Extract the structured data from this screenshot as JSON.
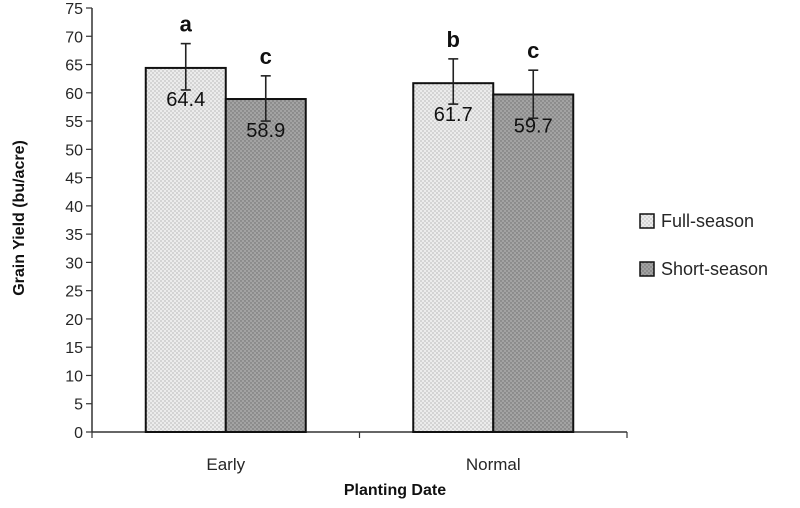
{
  "chart_data": {
    "type": "bar",
    "xlabel": "Planting Date",
    "ylabel": "Grain Yield (bu/acre)",
    "categories": [
      "Early",
      "Normal"
    ],
    "ylim": [
      0,
      75
    ],
    "yticks": [
      0,
      5,
      10,
      15,
      20,
      25,
      30,
      35,
      40,
      45,
      50,
      55,
      60,
      65,
      70,
      75
    ],
    "grid": false,
    "legend_position": "right",
    "series": [
      {
        "name": "Full-season",
        "values": [
          64.4,
          61.7
        ],
        "value_labels": [
          "64.4",
          "61.7"
        ],
        "error_low": [
          60.5,
          58.0
        ],
        "error_high": [
          68.7,
          66.0
        ],
        "significance": [
          "a",
          "b"
        ],
        "fill": "#e6e6e6",
        "pattern": "light-dotted"
      },
      {
        "name": "Short-season",
        "values": [
          58.9,
          59.7
        ],
        "value_labels": [
          "58.9",
          "59.7"
        ],
        "error_low": [
          55.0,
          55.5
        ],
        "error_high": [
          63.0,
          64.0
        ],
        "significance": [
          "c",
          "c"
        ],
        "fill": "#9a9a9a",
        "pattern": "dark-dotted"
      }
    ]
  }
}
